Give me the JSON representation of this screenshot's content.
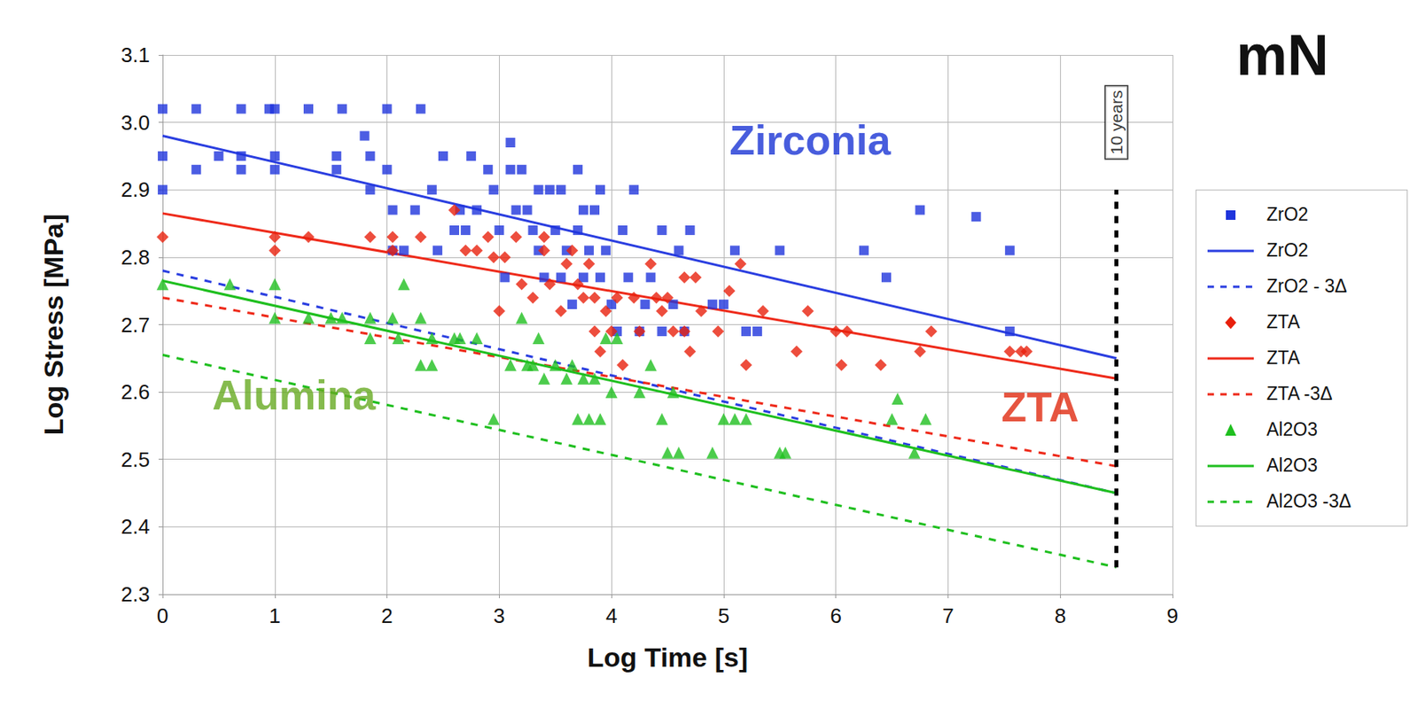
{
  "chart_data": {
    "type": "scatter",
    "title": "mN",
    "x_label": "Log Time [s]",
    "y_label": "Log Stress [MPa]",
    "xlim": [
      0,
      9
    ],
    "xticks": [
      0,
      1,
      2,
      3,
      4,
      5,
      6,
      7,
      8,
      9
    ],
    "ylim": [
      2.3,
      3.1
    ],
    "yticks": [
      2.3,
      2.4,
      2.5,
      2.6,
      2.7,
      2.8,
      2.9,
      {
        "value": 3,
        "label": "3.0"
      },
      3.1
    ],
    "grid": true,
    "legend": "right",
    "series": [
      {
        "name": "ZrO2",
        "type": "scatter",
        "marker": "square",
        "color": "#1f35dc",
        "x": [
          0,
          0,
          0,
          0.3,
          0.3,
          0.5,
          0.7,
          0.7,
          0.7,
          0.95,
          1.0,
          1.0,
          1.0,
          1.3,
          1.55,
          1.55,
          1.6,
          1.8,
          1.85,
          1.85,
          2.0,
          2.0,
          2.05,
          2.05,
          2.15,
          2.25,
          2.3,
          2.4,
          2.45,
          2.5,
          2.6,
          2.65,
          2.7,
          2.75,
          2.8,
          2.9,
          2.95,
          3.0,
          3.05,
          3.1,
          3.1,
          3.15,
          3.2,
          3.25,
          3.3,
          3.35,
          3.35,
          3.4,
          3.45,
          3.5,
          3.55,
          3.55,
          3.6,
          3.65,
          3.7,
          3.7,
          3.75,
          3.75,
          3.8,
          3.85,
          3.9,
          3.9,
          3.95,
          4.0,
          4.05,
          4.1,
          4.15,
          4.2,
          4.25,
          4.3,
          4.35,
          4.45,
          4.45,
          4.55,
          4.6,
          4.65,
          4.7,
          4.9,
          5.0,
          5.1,
          5.2,
          5.3,
          5.5,
          6.25,
          6.45,
          6.75,
          7.25,
          7.55,
          7.55
        ],
        "values": [
          3.02,
          2.95,
          2.9,
          3.02,
          2.93,
          2.95,
          3.02,
          2.95,
          2.93,
          3.02,
          3.02,
          2.95,
          2.93,
          3.02,
          2.95,
          2.93,
          3.02,
          2.98,
          2.95,
          2.9,
          3.02,
          2.93,
          2.87,
          2.81,
          2.81,
          2.87,
          3.02,
          2.9,
          2.81,
          2.95,
          2.84,
          2.87,
          2.84,
          2.95,
          2.87,
          2.93,
          2.9,
          2.84,
          2.77,
          2.97,
          2.93,
          2.87,
          2.93,
          2.87,
          2.84,
          2.9,
          2.81,
          2.77,
          2.9,
          2.84,
          2.9,
          2.77,
          2.81,
          2.73,
          2.93,
          2.84,
          2.87,
          2.77,
          2.81,
          2.87,
          2.9,
          2.77,
          2.81,
          2.73,
          2.69,
          2.84,
          2.77,
          2.9,
          2.69,
          2.73,
          2.77,
          2.84,
          2.69,
          2.73,
          2.81,
          2.69,
          2.84,
          2.73,
          2.73,
          2.81,
          2.69,
          2.69,
          2.81,
          2.81,
          2.77,
          2.87,
          2.86,
          2.81,
          2.69
        ]
      },
      {
        "name": "ZrO2",
        "type": "line",
        "line_style": "solid",
        "color": "#2a3ee0",
        "x": [
          0,
          8.5
        ],
        "values": [
          2.98,
          2.65
        ]
      },
      {
        "name": "ZrO2 - 3Δ",
        "type": "line",
        "line_style": "dashed",
        "color": "#2a3ee0",
        "x": [
          0,
          8.5
        ],
        "values": [
          2.78,
          2.45
        ]
      },
      {
        "name": "ZTA",
        "type": "scatter",
        "marker": "diamond",
        "color": "#e8200c",
        "x": [
          0,
          1.0,
          1.0,
          1.3,
          1.85,
          2.05,
          2.05,
          2.3,
          2.6,
          2.7,
          2.8,
          2.9,
          2.95,
          3.0,
          3.05,
          3.15,
          3.2,
          3.3,
          3.4,
          3.4,
          3.45,
          3.55,
          3.6,
          3.65,
          3.7,
          3.75,
          3.8,
          3.85,
          3.85,
          3.9,
          3.95,
          4.0,
          4.05,
          4.1,
          4.2,
          4.25,
          4.35,
          4.4,
          4.45,
          4.5,
          4.55,
          4.65,
          4.65,
          4.7,
          4.75,
          4.8,
          4.95,
          5.05,
          5.15,
          5.2,
          5.35,
          5.65,
          5.75,
          6.0,
          6.05,
          6.1,
          6.4,
          6.75,
          6.85,
          7.55,
          7.65,
          7.7
        ],
        "values": [
          2.83,
          2.83,
          2.81,
          2.83,
          2.83,
          2.83,
          2.81,
          2.83,
          2.87,
          2.81,
          2.81,
          2.83,
          2.8,
          2.72,
          2.8,
          2.83,
          2.76,
          2.74,
          2.83,
          2.81,
          2.76,
          2.72,
          2.79,
          2.81,
          2.76,
          2.74,
          2.79,
          2.74,
          2.69,
          2.66,
          2.72,
          2.69,
          2.74,
          2.64,
          2.74,
          2.69,
          2.79,
          2.74,
          2.72,
          2.74,
          2.69,
          2.69,
          2.77,
          2.66,
          2.77,
          2.72,
          2.69,
          2.75,
          2.79,
          2.64,
          2.72,
          2.66,
          2.72,
          2.69,
          2.64,
          2.69,
          2.64,
          2.66,
          2.69,
          2.66,
          2.66,
          2.66
        ]
      },
      {
        "name": "ZTA",
        "type": "line",
        "line_style": "solid",
        "color": "#ee2a1a",
        "x": [
          0,
          8.5
        ],
        "values": [
          2.865,
          2.62
        ]
      },
      {
        "name": "ZTA -3Δ",
        "type": "line",
        "line_style": "dashed",
        "color": "#ee2a1a",
        "x": [
          0,
          8.5
        ],
        "values": [
          2.74,
          2.49
        ]
      },
      {
        "name": "Al2O3",
        "type": "scatter",
        "marker": "triangle",
        "color": "#1fbf1f",
        "x": [
          0,
          0.6,
          1.0,
          1.0,
          1.3,
          1.5,
          1.6,
          1.85,
          1.85,
          2.05,
          2.1,
          2.15,
          2.3,
          2.3,
          2.4,
          2.4,
          2.6,
          2.65,
          2.8,
          2.95,
          3.1,
          3.2,
          3.25,
          3.3,
          3.35,
          3.4,
          3.5,
          3.6,
          3.65,
          3.7,
          3.75,
          3.8,
          3.85,
          3.9,
          3.95,
          4.0,
          4.05,
          4.25,
          4.35,
          4.45,
          4.5,
          4.55,
          4.6,
          4.9,
          5.0,
          5.1,
          5.2,
          5.5,
          5.55,
          6.5,
          6.55,
          6.7,
          6.8
        ],
        "values": [
          2.76,
          2.76,
          2.76,
          2.71,
          2.71,
          2.71,
          2.71,
          2.71,
          2.68,
          2.71,
          2.68,
          2.76,
          2.64,
          2.71,
          2.64,
          2.68,
          2.68,
          2.68,
          2.68,
          2.56,
          2.64,
          2.71,
          2.64,
          2.64,
          2.68,
          2.62,
          2.64,
          2.62,
          2.64,
          2.56,
          2.62,
          2.56,
          2.62,
          2.56,
          2.68,
          2.6,
          2.68,
          2.6,
          2.64,
          2.56,
          2.51,
          2.6,
          2.51,
          2.51,
          2.56,
          2.56,
          2.56,
          2.51,
          2.51,
          2.56,
          2.59,
          2.51,
          2.56
        ]
      },
      {
        "name": "Al2O3",
        "type": "line",
        "line_style": "solid",
        "color": "#1fbf1f",
        "x": [
          0,
          8.5
        ],
        "values": [
          2.765,
          2.45
        ]
      },
      {
        "name": "Al2O3 -3Δ",
        "type": "line",
        "line_style": "dashed",
        "color": "#1fbf1f",
        "x": [
          0,
          8.5
        ],
        "values": [
          2.655,
          2.34
        ]
      }
    ],
    "annotations": [
      {
        "text": "Zirconia",
        "x": 5.77,
        "y": 2.974,
        "color": "#1a35d4"
      },
      {
        "text": "Alumina",
        "x": 1.17,
        "y": 2.595,
        "color": "#66aa22"
      },
      {
        "text": "ZTA",
        "x": 7.82,
        "y": 2.578,
        "color": "#e02a10"
      }
    ],
    "reference_line": {
      "text": "10 years",
      "x": 8.5,
      "y": [
        2.34,
        2.9
      ],
      "label_y": 3.0,
      "color": "#000000",
      "line_style": "dashed"
    }
  }
}
